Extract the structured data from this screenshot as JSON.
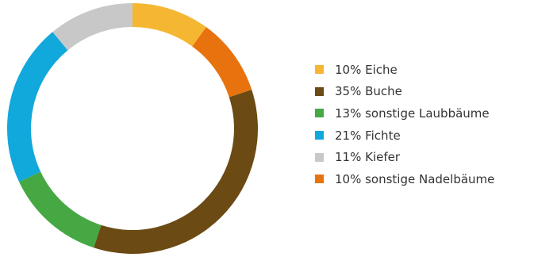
{
  "chart_data": {
    "type": "pie",
    "variant": "donut",
    "start_angle_deg": 0,
    "direction": "clockwise",
    "slices": [
      {
        "label": "10% Eiche",
        "value": 10,
        "color": "#f5b731"
      },
      {
        "label": "10% sonstige Nadelbäume",
        "value": 10,
        "color": "#e8730e"
      },
      {
        "label": "35% Buche",
        "value": 35,
        "color": "#6b4a14"
      },
      {
        "label": "13% sonstige Laubbäume",
        "value": 13,
        "color": "#45a843"
      },
      {
        "label": "21% Fichte",
        "value": 21,
        "color": "#11a8dc"
      },
      {
        "label": "11% Kiefer",
        "value": 11,
        "color": "#c8c8c8"
      }
    ],
    "legend": {
      "placement": "right",
      "items": [
        {
          "label": "10% Eiche",
          "color": "#f5b731"
        },
        {
          "label": "35% Buche",
          "color": "#6b4a14"
        },
        {
          "label": "13% sonstige Laubbäume",
          "color": "#45a843"
        },
        {
          "label": "21% Fichte",
          "color": "#11a8dc"
        },
        {
          "label": "11% Kiefer",
          "color": "#c8c8c8"
        },
        {
          "label": "10% sonstige Nadelbäume",
          "color": "#e8730e"
        }
      ]
    }
  }
}
